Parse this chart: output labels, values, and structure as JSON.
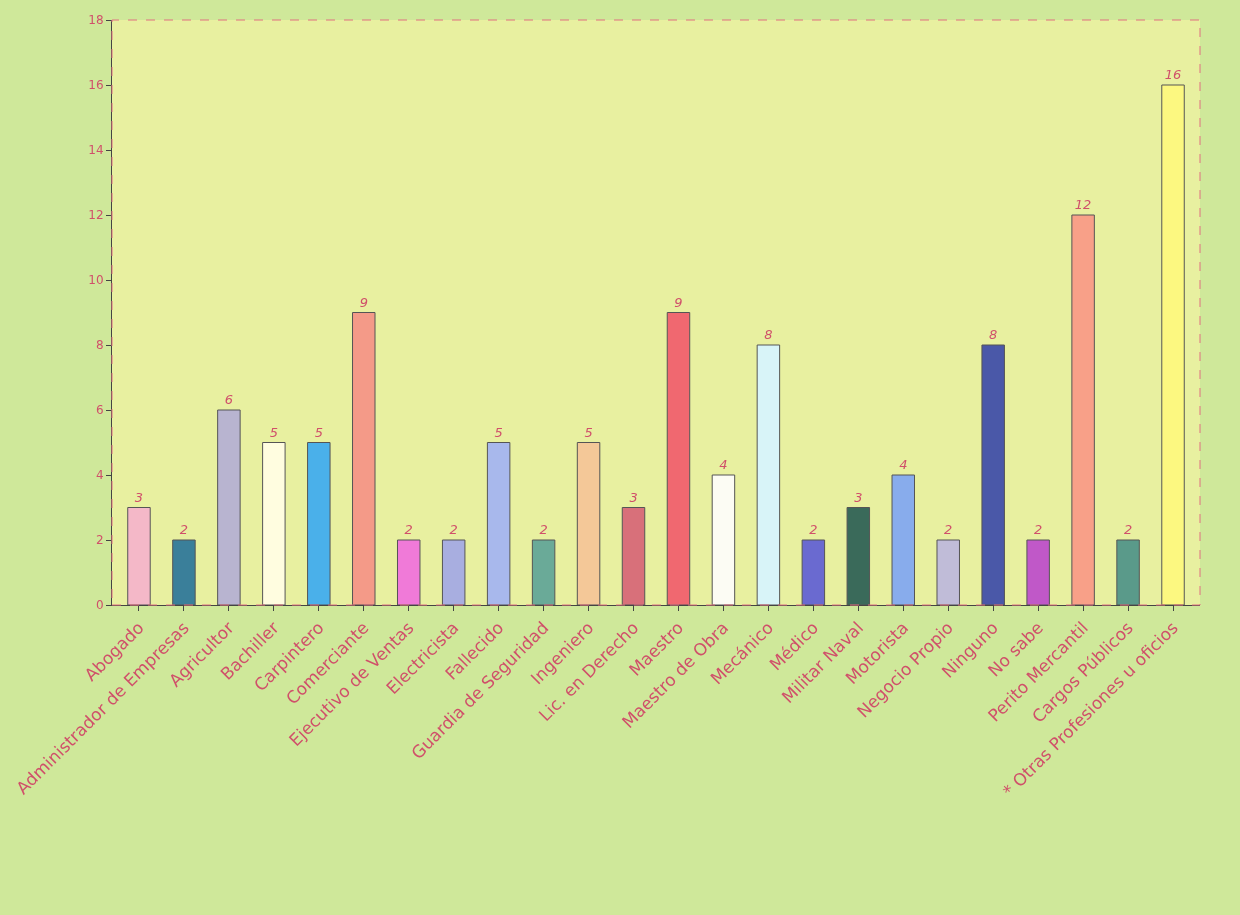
{
  "chart_data": {
    "type": "bar",
    "categories": [
      "Abogado",
      "Administrador de Empresas",
      "Agricultor",
      "Bachiller",
      "Carpintero",
      "Comerciante",
      "Ejecutivo de Ventas",
      "Electricista",
      "Fallecido",
      "Guardia de Seguridad",
      "Ingeniero",
      "Lic. en Derecho",
      "Maestro",
      "Maestro de Obra",
      "Mecánico",
      "Médico",
      "Militar Naval",
      "Motorista",
      "Negocio Propio",
      "Ninguno",
      "No sabe",
      "Perito Mercantil",
      "Cargos Públicos",
      "* Otras Profesiones u oficios"
    ],
    "values": [
      3,
      2,
      6,
      5,
      5,
      9,
      2,
      2,
      5,
      2,
      5,
      3,
      9,
      4,
      8,
      2,
      3,
      4,
      2,
      8,
      2,
      12,
      2,
      16
    ],
    "colors": [
      "#f4b8c8",
      "#3a7f9a",
      "#b8b4d0",
      "#fffde0",
      "#4ab0ea",
      "#f49a88",
      "#f07ad8",
      "#a8aee0",
      "#a8b8ec",
      "#6aaa98",
      "#f4c898",
      "#d8707a",
      "#f06870",
      "#fcfcf4",
      "#d8f4f8",
      "#6a6ad0",
      "#3a6a5a",
      "#88acec",
      "#c0bcd8",
      "#4a58a8",
      "#c058c8",
      "#f8a088",
      "#5a9a8a",
      "#fcf880"
    ],
    "ylim": [
      0,
      18
    ],
    "yticks": [
      0,
      2,
      4,
      6,
      8,
      10,
      12,
      14,
      16,
      18
    ],
    "data_labels": true
  }
}
